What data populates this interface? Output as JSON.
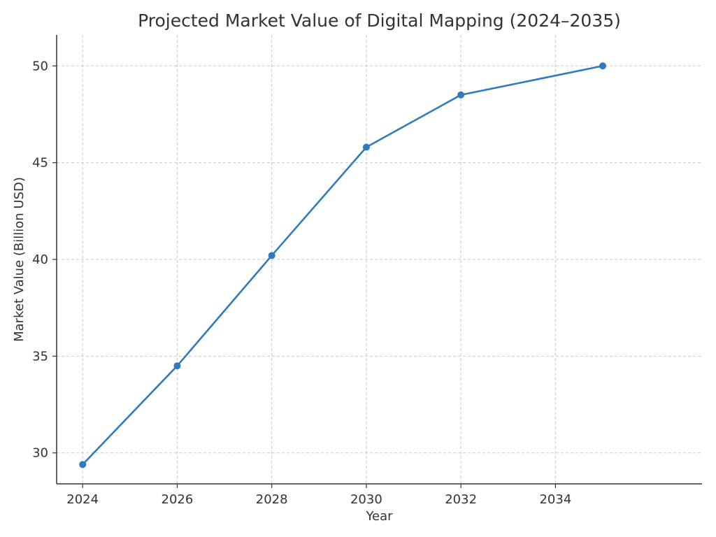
{
  "chart_data": {
    "type": "line",
    "title": "Projected Market Value of Digital Mapping (2024–2035)",
    "xlabel": "Year",
    "ylabel": "Market Value (Billion USD)",
    "x": [
      2024,
      2026,
      2028,
      2030,
      2032,
      2035
    ],
    "series": [
      {
        "values": [
          29.4,
          34.5,
          40.2,
          45.8,
          48.5,
          50.0
        ],
        "color": "#2f7bbd",
        "marker": "circle"
      }
    ],
    "xlim": [
      2023.45,
      2037.1
    ],
    "ylim": [
      28.4,
      51.6
    ],
    "xticks": [
      2024,
      2026,
      2028,
      2030,
      2032,
      2034
    ],
    "yticks": [
      30,
      35,
      40,
      45,
      50
    ],
    "xtick_labels": [
      "2024",
      "2026",
      "2028",
      "2030",
      "2032",
      "2034"
    ],
    "ytick_labels": [
      "30",
      "35",
      "40",
      "45",
      "50"
    ],
    "grid": true,
    "legend": "none"
  }
}
